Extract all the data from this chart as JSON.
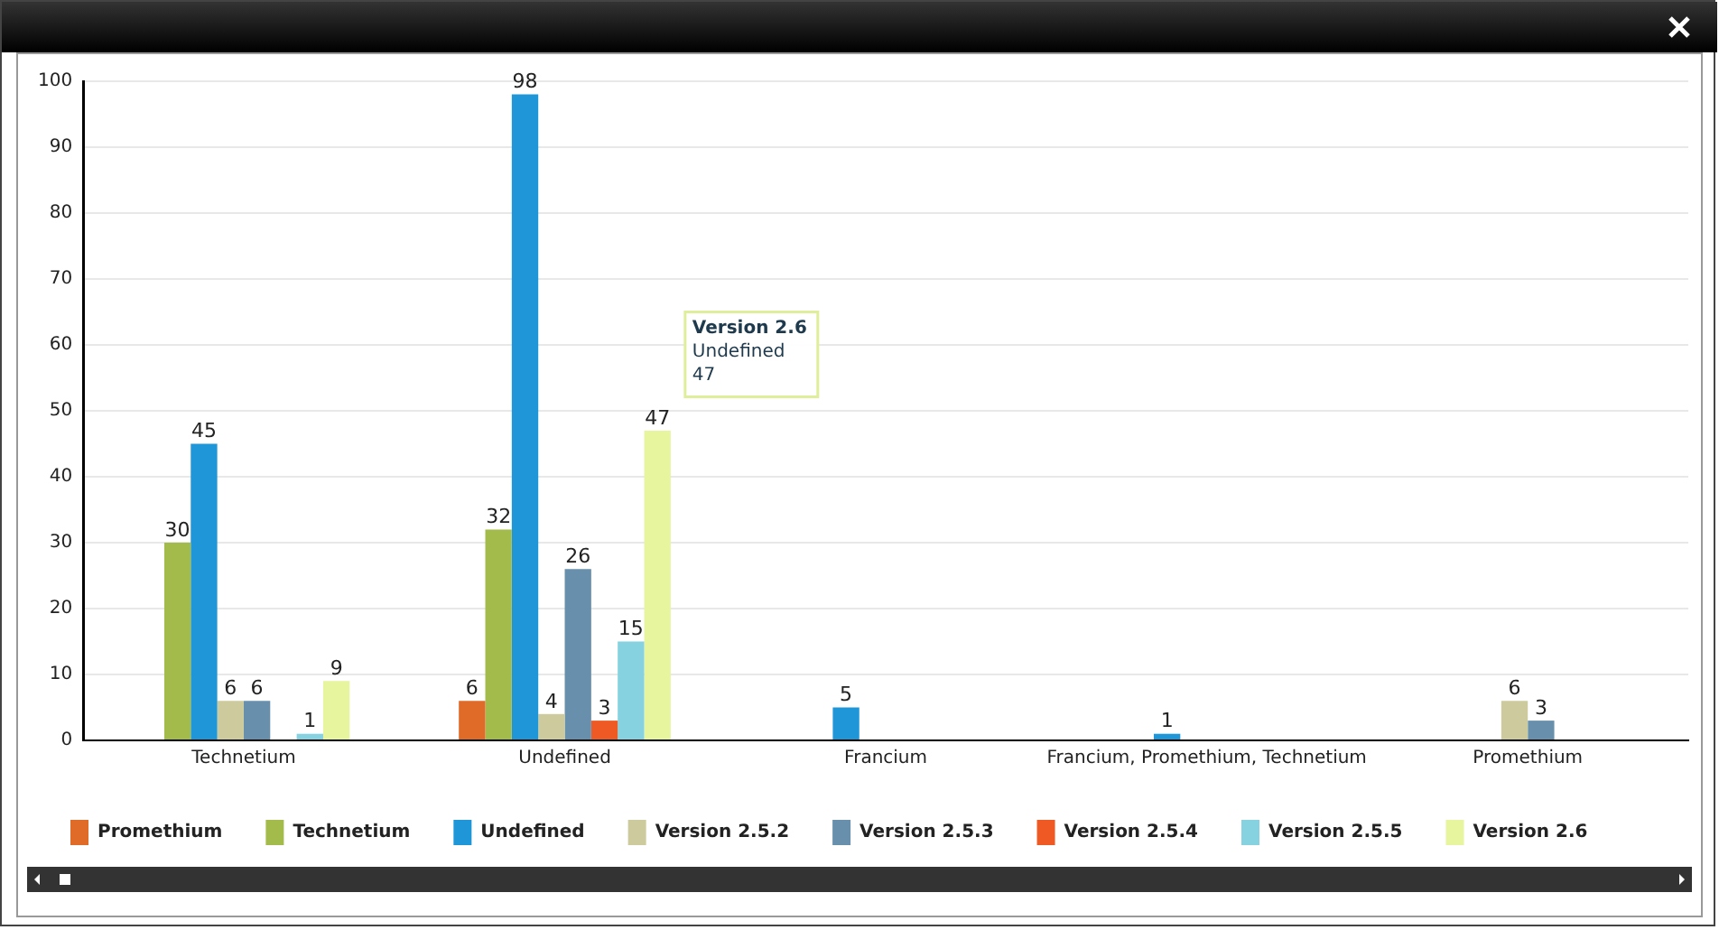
{
  "chart_data": {
    "type": "bar",
    "categories": [
      "Technetium",
      "Undefined",
      "Francium",
      "Francium, Promethium, Technetium",
      "Promethium"
    ],
    "series": [
      {
        "name": "Promethium",
        "color": "#e06a28",
        "values": [
          null,
          6,
          0,
          0,
          0
        ],
        "value_labels": [
          null,
          "6",
          null,
          null,
          null
        ]
      },
      {
        "name": "Technetium",
        "color": "#a2bb4a",
        "values": [
          30,
          32,
          null,
          null,
          null
        ],
        "value_labels": [
          "30",
          "32",
          null,
          null,
          null
        ]
      },
      {
        "name": "Undefined",
        "color": "#1e96d8",
        "values": [
          45,
          98,
          5,
          1,
          null
        ],
        "value_labels": [
          "45",
          "98",
          "5",
          "1",
          null
        ]
      },
      {
        "name": "Version 2.5.2",
        "color": "#cdcb9e",
        "values": [
          6,
          4,
          null,
          null,
          6
        ],
        "value_labels": [
          "6",
          "4",
          null,
          null,
          "6"
        ]
      },
      {
        "name": "Version 2.5.3",
        "color": "#6890ad",
        "values": [
          6,
          26,
          null,
          null,
          3
        ],
        "value_labels": [
          "6",
          "26",
          null,
          null,
          "3"
        ]
      },
      {
        "name": "Version 2.5.4",
        "color": "#ef5a24",
        "values": [
          null,
          3,
          null,
          null,
          null
        ],
        "value_labels": [
          null,
          "3",
          null,
          null,
          null
        ]
      },
      {
        "name": "Version 2.5.5",
        "color": "#86d2e0",
        "values": [
          1,
          15,
          null,
          null,
          null
        ],
        "value_labels": [
          "1",
          "15",
          null,
          null,
          null
        ]
      },
      {
        "name": "Version 2.6",
        "color": "#e6f59e",
        "values": [
          9,
          47,
          null,
          null,
          null
        ],
        "value_labels": [
          "9",
          "47",
          null,
          null,
          null
        ]
      }
    ],
    "ylim": [
      0,
      100
    ],
    "yticks": [
      0,
      10,
      20,
      30,
      40,
      50,
      60,
      70,
      80,
      90,
      100
    ],
    "grid": "y",
    "legend": "bottom left",
    "annotations": [
      "Version 2.6\nUndefined\n47"
    ]
  }
}
